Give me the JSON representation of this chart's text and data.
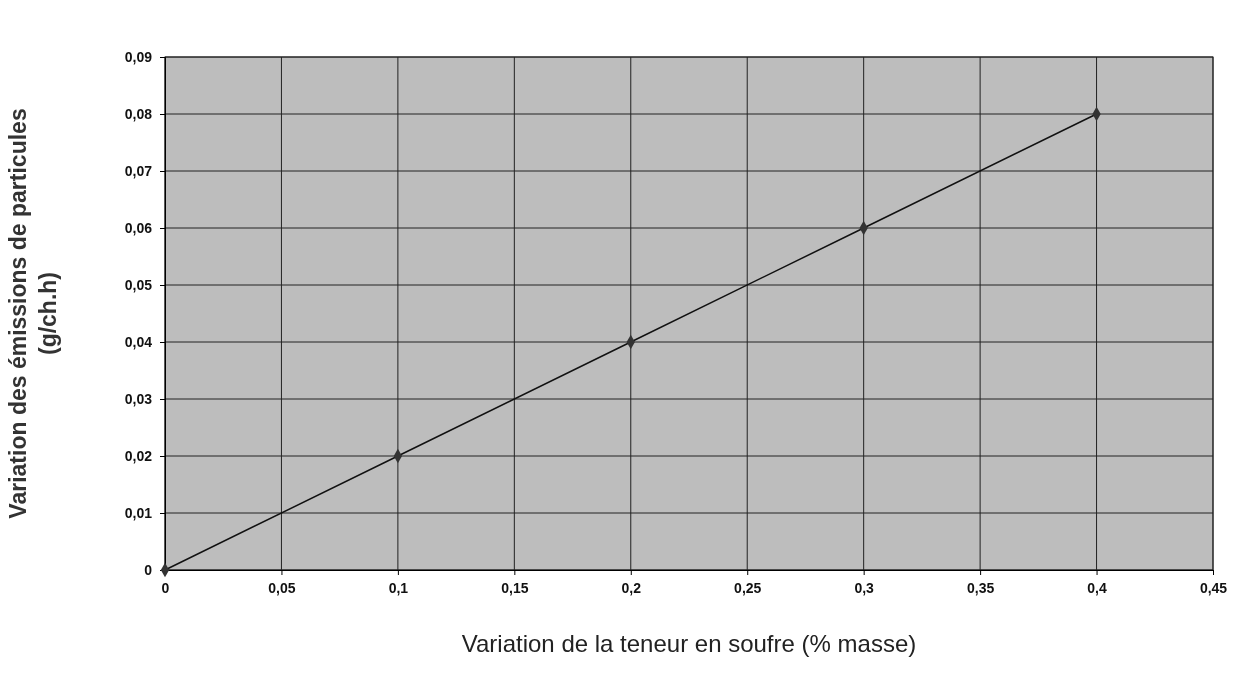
{
  "chart_data": {
    "type": "line",
    "xlabel": "Variation de la teneur en soufre (% masse)",
    "ylabel": "Variation des émissions de particules\n(g/ch.h)",
    "x": [
      0,
      0.1,
      0.2,
      0.3,
      0.4
    ],
    "series": [
      {
        "color": "#333333",
        "values": [
          0,
          0.02,
          0.04,
          0.06,
          0.08
        ]
      }
    ],
    "xlim": [
      0,
      0.45
    ],
    "ylim": [
      0,
      0.09
    ],
    "xticks": [
      0,
      {
        "value": 0.05,
        "label": "0,05"
      },
      {
        "value": 0.1,
        "label": "0,1"
      },
      {
        "value": 0.15,
        "label": "0,15"
      },
      {
        "value": 0.2,
        "label": "0,2"
      },
      {
        "value": 0.25,
        "label": "0,25"
      },
      {
        "value": 0.3,
        "label": "0,3"
      },
      {
        "value": 0.35,
        "label": "0,35"
      },
      {
        "value": 0.4,
        "label": "0,4"
      },
      {
        "value": 0.45,
        "label": "0,45"
      }
    ],
    "yticks": [
      0,
      {
        "value": 0.01,
        "label": "0,01"
      },
      {
        "value": 0.02,
        "label": "0,02"
      },
      {
        "value": 0.03,
        "label": "0,03"
      },
      {
        "value": 0.04,
        "label": "0,04"
      },
      {
        "value": 0.05,
        "label": "0,05"
      },
      {
        "value": 0.06,
        "label": "0,06"
      },
      {
        "value": 0.07,
        "label": "0,07"
      },
      {
        "value": 0.08,
        "label": "0,08"
      },
      {
        "value": 0.09,
        "label": "0,09"
      }
    ],
    "grid": true,
    "marker": "diamond",
    "line_style": "solid"
  }
}
